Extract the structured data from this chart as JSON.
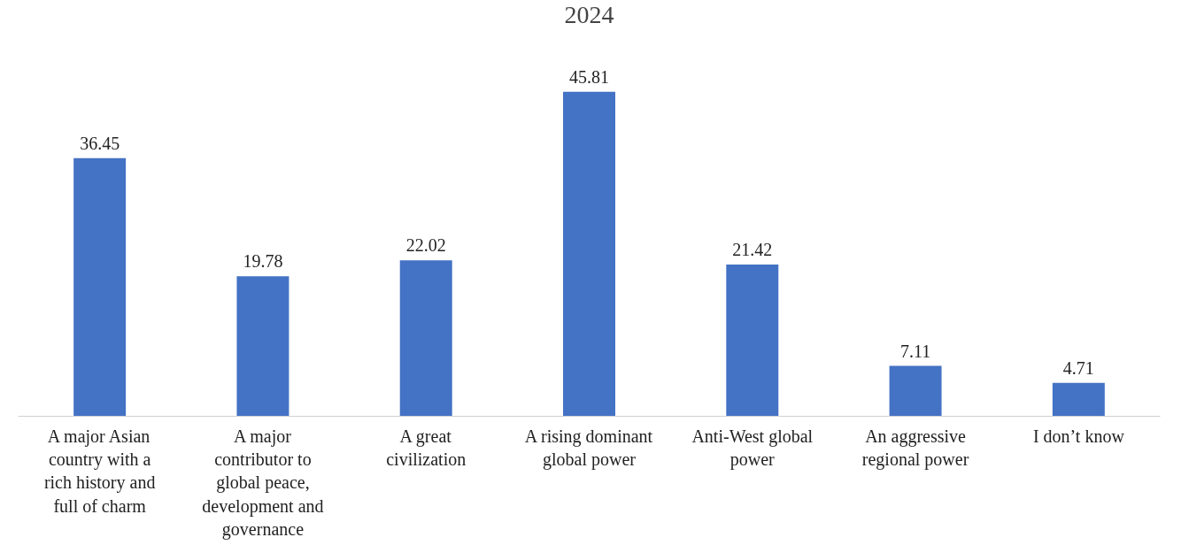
{
  "chart_data": {
    "type": "bar",
    "title": "2024",
    "categories": [
      "A major Asian country with a rich history and full of charm",
      "A major contributor to global peace, development and governance",
      "A great civilization",
      "A rising dominant global power",
      "Anti-West global power",
      "An aggressive regional power",
      "I don’t know"
    ],
    "values": [
      36.45,
      19.78,
      22.02,
      45.81,
      21.42,
      7.11,
      4.71
    ],
    "color": "#4472c4",
    "data_labels": true,
    "grid": false,
    "tick_labels": "x"
  }
}
